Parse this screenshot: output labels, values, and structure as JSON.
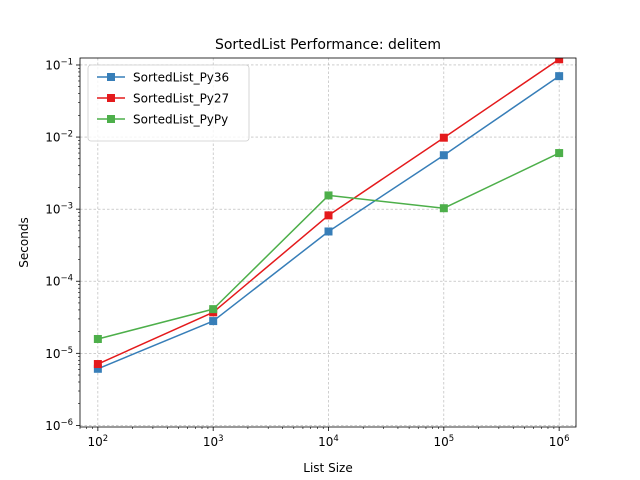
{
  "chart_data": {
    "type": "line",
    "title": "SortedList Performance: delitem",
    "xlabel": "List Size",
    "ylabel": "Seconds",
    "x_scale": "log",
    "y_scale": "log",
    "x": [
      100,
      1000,
      10000,
      100000,
      1000000
    ],
    "xlim": [
      70,
      1400000
    ],
    "ylim": [
      9.5e-07,
      0.125
    ],
    "grid": true,
    "legend_position": "top-left",
    "x_ticks": [
      {
        "value": 100,
        "base": "10",
        "exp": "2"
      },
      {
        "value": 1000,
        "base": "10",
        "exp": "3"
      },
      {
        "value": 10000,
        "base": "10",
        "exp": "4"
      },
      {
        "value": 100000,
        "base": "10",
        "exp": "5"
      },
      {
        "value": 1000000,
        "base": "10",
        "exp": "6"
      }
    ],
    "y_ticks": [
      {
        "value": 1e-06,
        "base": "10",
        "exp": "−6"
      },
      {
        "value": 1e-05,
        "base": "10",
        "exp": "−5"
      },
      {
        "value": 0.0001,
        "base": "10",
        "exp": "−4"
      },
      {
        "value": 0.001,
        "base": "10",
        "exp": "−3"
      },
      {
        "value": 0.01,
        "base": "10",
        "exp": "−2"
      },
      {
        "value": 0.1,
        "base": "10",
        "exp": "−1"
      }
    ],
    "series": [
      {
        "name": "SortedList_Py36",
        "color": "#377eb8",
        "values": [
          6.1e-06,
          2.8e-05,
          0.00049,
          0.0056,
          0.07
        ]
      },
      {
        "name": "SortedList_Py27",
        "color": "#e41a1c",
        "values": [
          7.1e-06,
          3.7e-05,
          0.00082,
          0.0098,
          0.12
        ]
      },
      {
        "name": "SortedList_PyPy",
        "color": "#4daf4a",
        "values": [
          1.58e-05,
          4.1e-05,
          0.00155,
          0.00103,
          0.006
        ]
      }
    ]
  }
}
